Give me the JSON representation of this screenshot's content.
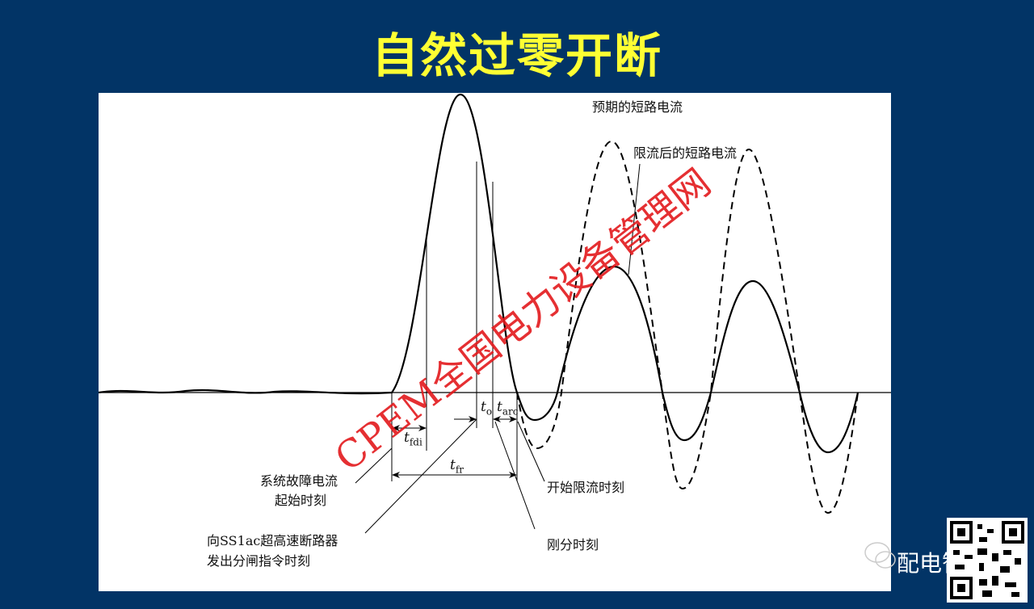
{
  "slide": {
    "title": "自然过零开断",
    "background_color": "#023466",
    "title_color": "#ffff33"
  },
  "diagram": {
    "curve_labels": {
      "prospective": "预期的短路电流",
      "limited": "限流后的短路电流"
    },
    "event_labels": {
      "fault_start_line1": "系统故障电流",
      "fault_start_line2": "起始时刻",
      "limit_start": "开始限流时刻",
      "command_line1": "向SS1ac超高速断路器",
      "command_line2": "发出分闸指令时刻",
      "contact_sep": "刚分时刻"
    },
    "symbols": {
      "t_fdi": {
        "base": "t",
        "sub": "fdi"
      },
      "t_fr": {
        "base": "t",
        "sub": "fr"
      },
      "t_o": {
        "base": "t",
        "sub": "o"
      },
      "t_arc": {
        "base": "t",
        "sub": "arc"
      }
    }
  },
  "watermark": "CPEM全国电力设备管理网",
  "branding": {
    "name": "配电智库",
    "icons": [
      "wechat-icon",
      "qr-code"
    ]
  }
}
